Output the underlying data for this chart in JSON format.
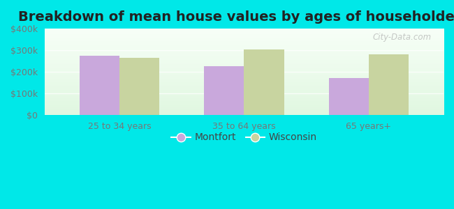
{
  "title": "Breakdown of mean house values by ages of householders",
  "categories": [
    "25 to 34 years",
    "35 to 64 years",
    "65 years+"
  ],
  "montfort_values": [
    275000,
    225000,
    170000
  ],
  "wisconsin_values": [
    265000,
    305000,
    280000
  ],
  "montfort_color": "#c9a8dc",
  "wisconsin_color": "#c8d4a0",
  "ylim": [
    0,
    400000
  ],
  "yticks": [
    0,
    100000,
    200000,
    300000,
    400000
  ],
  "ytick_labels": [
    "$0",
    "$100k",
    "$200k",
    "$300k",
    "$400k"
  ],
  "background_color": "#00e8e8",
  "legend_labels": [
    "Montfort",
    "Wisconsin"
  ],
  "bar_width": 0.32,
  "title_fontsize": 14,
  "watermark_text": "City-Data.com"
}
